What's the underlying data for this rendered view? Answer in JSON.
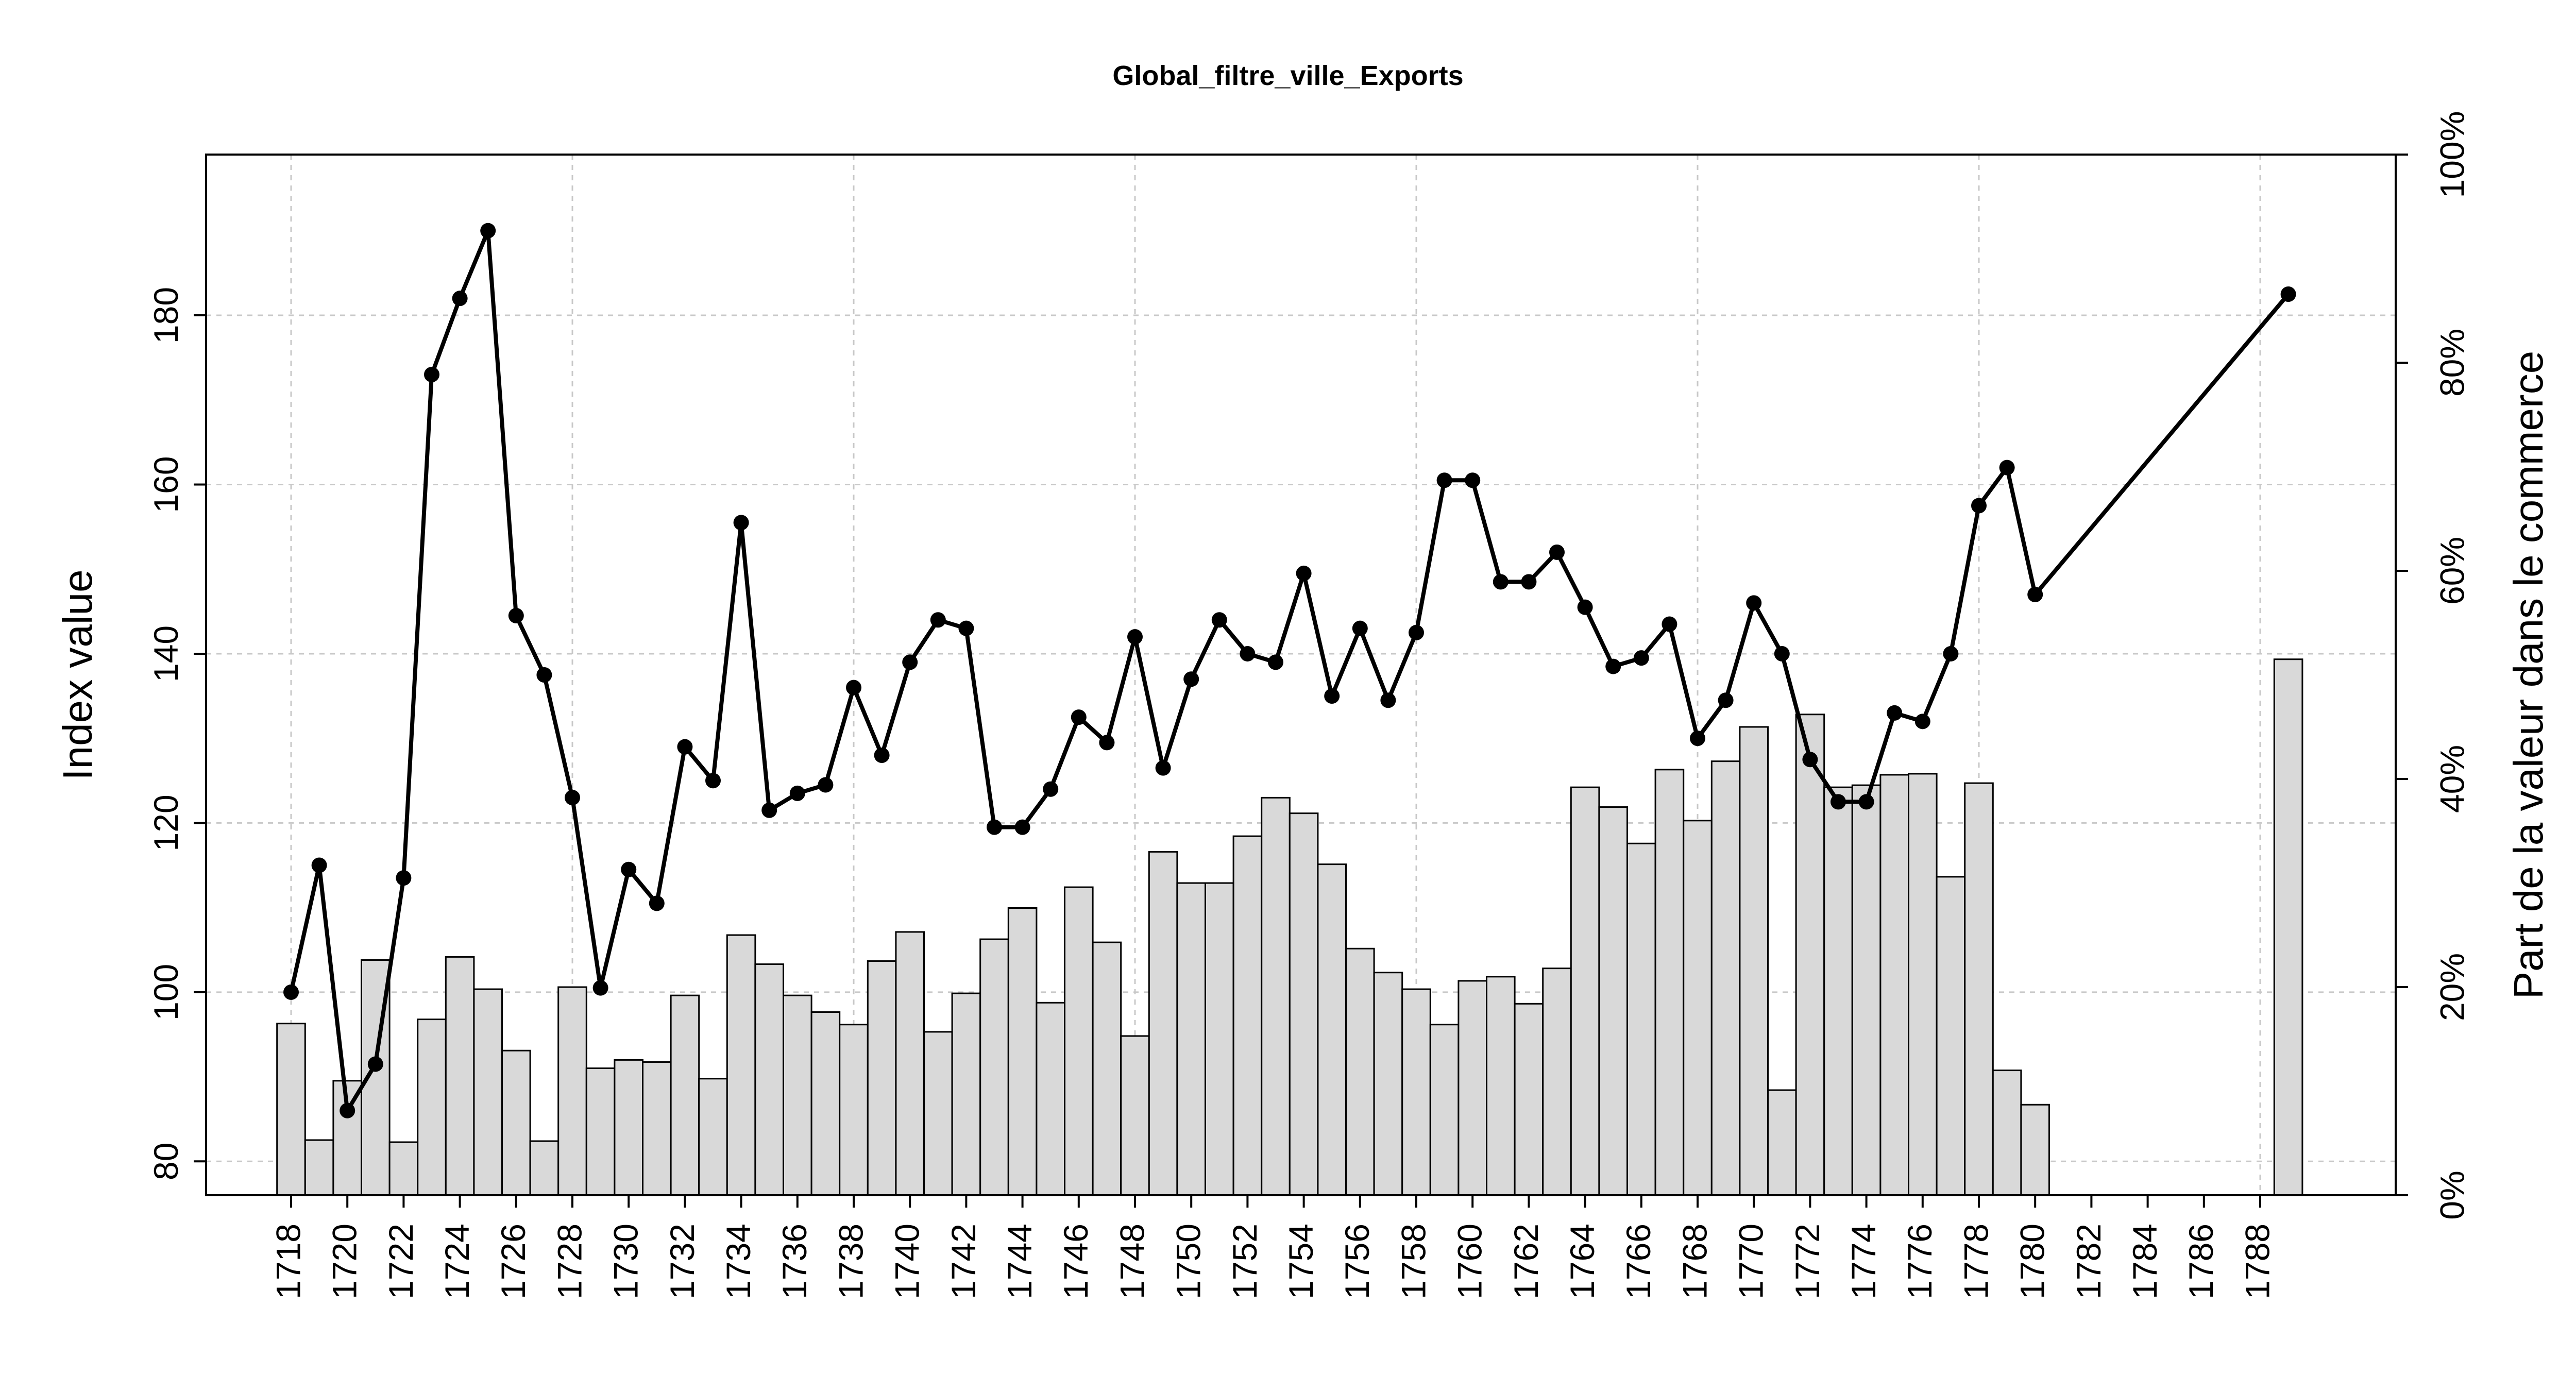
{
  "chart_data": {
    "type": "bar+line",
    "title": "Global_filtre_ville_Exports",
    "ylabel_left": "Index value",
    "ylabel_right": "Part de la valeur dans le commerce",
    "xlabel": "",
    "x_tick_labels": [
      "1718",
      "1720",
      "1722",
      "1724",
      "1726",
      "1728",
      "1730",
      "1732",
      "1734",
      "1736",
      "1738",
      "1740",
      "1742",
      "1744",
      "1746",
      "1748",
      "1750",
      "1752",
      "1754",
      "1756",
      "1758",
      "1760",
      "1762",
      "1764",
      "1766",
      "1768",
      "1770",
      "1772",
      "1774",
      "1776",
      "1778",
      "1780",
      "1782",
      "1784",
      "1786",
      "1788"
    ],
    "y_left_ticks": [
      "80",
      "100",
      "120",
      "140",
      "160",
      "180"
    ],
    "y_right_ticks": [
      "0%",
      "20%",
      "40%",
      "60%",
      "80%",
      "100%"
    ],
    "xlim": [
      1717,
      1790
    ],
    "ylim_left": [
      76,
      199
    ],
    "ylim_right": [
      0,
      1
    ],
    "grid": true,
    "colors": {
      "bars": "#d9d9d9",
      "line": "#000000",
      "grid": "#c8c8c8"
    },
    "bars": {
      "name": "",
      "years": [
        1718,
        1719,
        1720,
        1721,
        1722,
        1723,
        1724,
        1725,
        1726,
        1727,
        1728,
        1729,
        1730,
        1731,
        1732,
        1733,
        1734,
        1735,
        1736,
        1737,
        1738,
        1739,
        1740,
        1741,
        1742,
        1743,
        1744,
        1745,
        1746,
        1747,
        1748,
        1749,
        1750,
        1751,
        1752,
        1753,
        1754,
        1755,
        1756,
        1757,
        1758,
        1759,
        1760,
        1761,
        1762,
        1763,
        1764,
        1765,
        1766,
        1767,
        1768,
        1769,
        1770,
        1771,
        1772,
        1773,
        1774,
        1775,
        1776,
        1777,
        1778,
        1779,
        1780,
        1789
      ],
      "values": [
        0.165,
        0.053,
        0.11,
        0.226,
        0.051,
        0.169,
        0.229,
        0.198,
        0.139,
        0.052,
        0.2,
        0.122,
        0.13,
        0.128,
        0.192,
        0.112,
        0.25,
        0.222,
        0.192,
        0.176,
        0.164,
        0.225,
        0.253,
        0.157,
        0.194,
        0.246,
        0.276,
        0.185,
        0.296,
        0.243,
        0.153,
        0.33,
        0.3,
        0.3,
        0.345,
        0.382,
        0.367,
        0.318,
        0.237,
        0.214,
        0.198,
        0.164,
        0.206,
        0.21,
        0.184,
        0.218,
        0.392,
        0.373,
        0.338,
        0.409,
        0.36,
        0.417,
        0.45,
        0.101,
        0.462,
        0.392,
        0.394,
        0.404,
        0.405,
        0.306,
        0.396,
        0.12,
        0.087,
        0.515
      ]
    },
    "line": {
      "name": "",
      "years": [
        1718,
        1719,
        1720,
        1721,
        1722,
        1723,
        1724,
        1725,
        1726,
        1727,
        1728,
        1729,
        1730,
        1731,
        1732,
        1733,
        1734,
        1735,
        1736,
        1737,
        1738,
        1739,
        1740,
        1741,
        1742,
        1743,
        1744,
        1745,
        1746,
        1747,
        1748,
        1749,
        1750,
        1751,
        1752,
        1753,
        1754,
        1755,
        1756,
        1757,
        1758,
        1759,
        1760,
        1761,
        1762,
        1763,
        1764,
        1765,
        1766,
        1767,
        1768,
        1769,
        1770,
        1771,
        1772,
        1773,
        1774,
        1775,
        1776,
        1777,
        1778,
        1779,
        1780,
        1789
      ],
      "values": [
        100,
        115,
        86,
        91.5,
        113.5,
        173,
        182,
        190,
        144.5,
        137.5,
        123,
        100.5,
        114.5,
        110.5,
        129,
        125,
        155.5,
        121.5,
        123.5,
        124.5,
        136,
        128,
        139,
        144,
        143,
        119.5,
        119.5,
        124,
        132.5,
        129.5,
        142,
        126.5,
        137,
        144,
        140,
        139,
        149.5,
        135,
        143,
        134.5,
        142.5,
        160.5,
        160.5,
        148.5,
        148.5,
        152,
        145.5,
        138.5,
        139.5,
        143.5,
        130,
        134.5,
        146,
        140,
        127.5,
        122.5,
        122.5,
        133,
        132,
        140,
        157.5,
        162,
        147,
        182.5
      ]
    }
  }
}
